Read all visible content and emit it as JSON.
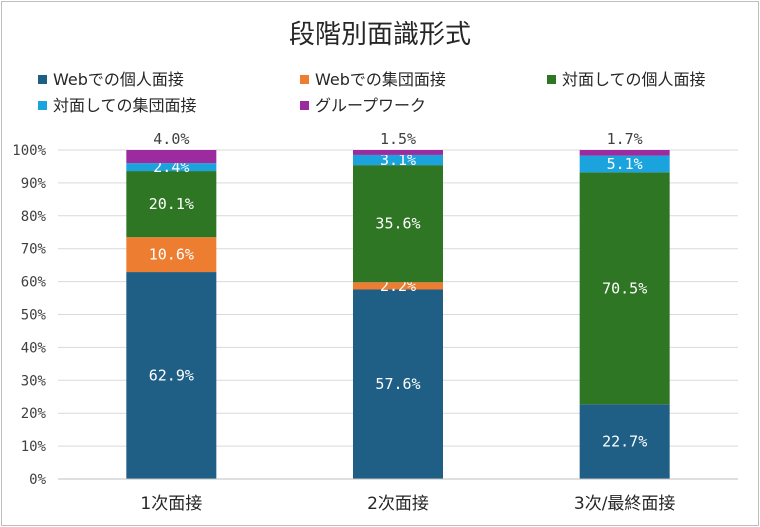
{
  "chart_data": {
    "type": "bar",
    "stacked": true,
    "title": "段階別面識形式",
    "categories": [
      "1次面接",
      "2次面接",
      "3次/最終面接"
    ],
    "series": [
      {
        "name": "Webでの個人面接",
        "color": "#1f5f86",
        "values": [
          62.9,
          57.6,
          22.7
        ],
        "labels": [
          "62.9%",
          "57.6%",
          "22.7%"
        ]
      },
      {
        "name": "Webでの集団面接",
        "color": "#ed7d31",
        "values": [
          10.6,
          2.2,
          0.0
        ],
        "labels": [
          "10.6%",
          "2.2%",
          ""
        ]
      },
      {
        "name": "対面しての個人面接",
        "color": "#2e7524",
        "values": [
          20.1,
          35.6,
          70.5
        ],
        "labels": [
          "20.1%",
          "35.6%",
          "70.5%"
        ]
      },
      {
        "name": "対面しての集団面接",
        "color": "#1aa3dc",
        "values": [
          2.4,
          3.1,
          5.1
        ],
        "labels": [
          "2.4%",
          "3.1%",
          "5.1%"
        ]
      },
      {
        "name": "グループワーク",
        "color": "#9c2ba0",
        "values": [
          4.0,
          1.5,
          1.7
        ],
        "labels": [
          "4.0%",
          "1.5%",
          "1.7%"
        ]
      }
    ],
    "ylim": [
      0,
      100
    ],
    "yticks": [
      "0%",
      "10%",
      "20%",
      "30%",
      "40%",
      "50%",
      "60%",
      "70%",
      "80%",
      "90%",
      "100%"
    ],
    "grid": true,
    "legend": "top"
  }
}
